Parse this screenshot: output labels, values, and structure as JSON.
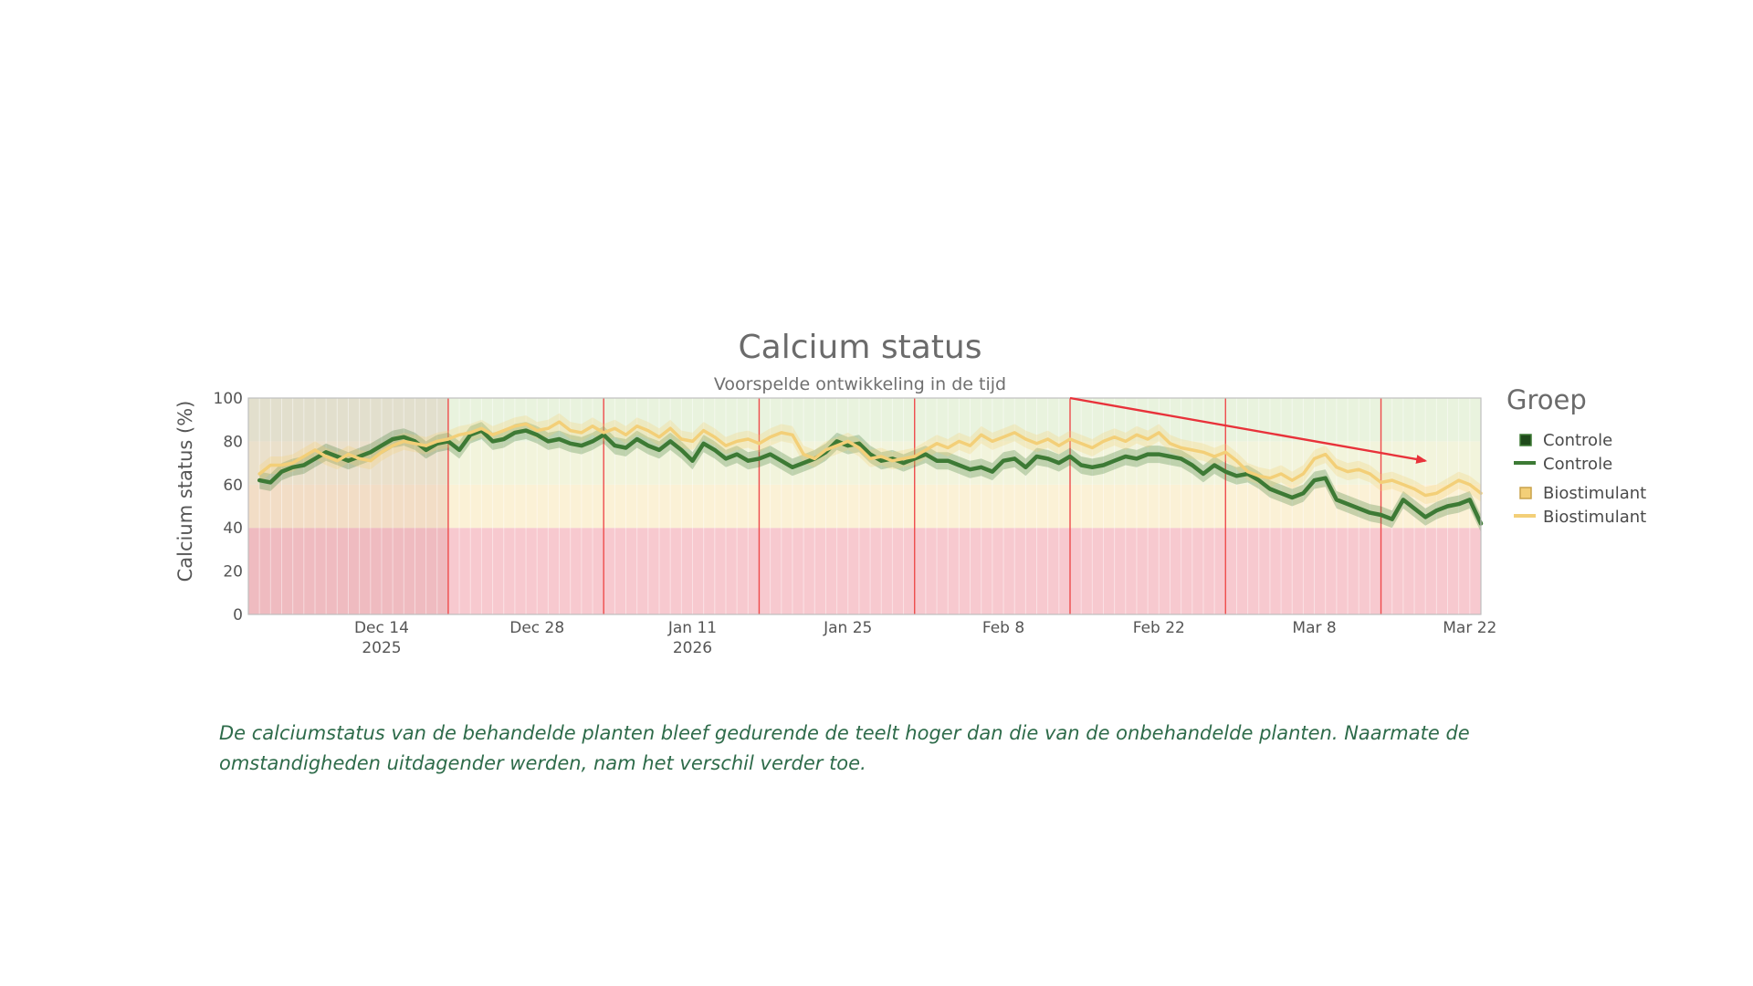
{
  "chart_data": {
    "type": "line",
    "title": "Calcium status",
    "subtitle": "Voorspelde ontwikkeling in de tijd",
    "ylabel": "Calcium status (%)",
    "xlabel": "",
    "ylim": [
      0,
      100
    ],
    "yticks": [
      0,
      20,
      40,
      60,
      80,
      100
    ],
    "xlim": [
      "2025-12-02",
      "2026-03-23"
    ],
    "xticks": [
      {
        "date": "2025-12-14",
        "label": "Dec 14",
        "sublabel": "2025"
      },
      {
        "date": "2025-12-28",
        "label": "Dec 28",
        "sublabel": ""
      },
      {
        "date": "2026-01-11",
        "label": "Jan 11",
        "sublabel": "2026"
      },
      {
        "date": "2026-01-25",
        "label": "Jan 25",
        "sublabel": ""
      },
      {
        "date": "2026-02-08",
        "label": "Feb 8",
        "sublabel": ""
      },
      {
        "date": "2026-02-22",
        "label": "Feb 22",
        "sublabel": ""
      },
      {
        "date": "2026-03-08",
        "label": "Mar 8",
        "sublabel": ""
      },
      {
        "date": "2026-03-22",
        "label": "Mar 22",
        "sublabel": ""
      }
    ],
    "bands": [
      {
        "from": 0,
        "to": 40,
        "color": "#f7c9cf"
      },
      {
        "from": 40,
        "to": 60,
        "color": "#fbf1d6"
      },
      {
        "from": 60,
        "to": 80,
        "color": "#f2f4dc"
      },
      {
        "from": 80,
        "to": 100,
        "color": "#e9f3de"
      }
    ],
    "vertical_markers": [
      "2025-12-20",
      "2026-01-03",
      "2026-01-17",
      "2026-01-31",
      "2026-02-14",
      "2026-02-28",
      "2026-03-14"
    ],
    "legend": {
      "title": "Groep",
      "position": "right"
    },
    "series": [
      {
        "name": "Controle",
        "color": "#3d7a35",
        "points": [
          [
            "2025-12-03",
            62
          ],
          [
            "2025-12-04",
            61
          ],
          [
            "2025-12-05",
            66
          ],
          [
            "2025-12-06",
            68
          ],
          [
            "2025-12-07",
            69
          ],
          [
            "2025-12-08",
            72
          ],
          [
            "2025-12-09",
            75
          ],
          [
            "2025-12-10",
            73
          ],
          [
            "2025-12-11",
            71
          ],
          [
            "2025-12-12",
            73
          ],
          [
            "2025-12-13",
            75
          ],
          [
            "2025-12-14",
            78
          ],
          [
            "2025-12-15",
            81
          ],
          [
            "2025-12-16",
            82
          ],
          [
            "2025-12-17",
            80
          ],
          [
            "2025-12-18",
            76
          ],
          [
            "2025-12-19",
            79
          ],
          [
            "2025-12-20",
            80
          ],
          [
            "2025-12-21",
            76
          ],
          [
            "2025-12-22",
            83
          ],
          [
            "2025-12-23",
            85
          ],
          [
            "2025-12-24",
            80
          ],
          [
            "2025-12-25",
            81
          ],
          [
            "2025-12-26",
            84
          ],
          [
            "2025-12-27",
            85
          ],
          [
            "2025-12-28",
            83
          ],
          [
            "2025-12-29",
            80
          ],
          [
            "2025-12-30",
            81
          ],
          [
            "2025-12-31",
            79
          ],
          [
            "2026-01-01",
            78
          ],
          [
            "2026-01-02",
            80
          ],
          [
            "2026-01-03",
            83
          ],
          [
            "2026-01-04",
            78
          ],
          [
            "2026-01-05",
            77
          ],
          [
            "2026-01-06",
            81
          ],
          [
            "2026-01-07",
            78
          ],
          [
            "2026-01-08",
            76
          ],
          [
            "2026-01-09",
            80
          ],
          [
            "2026-01-10",
            76
          ],
          [
            "2026-01-11",
            71
          ],
          [
            "2026-01-12",
            79
          ],
          [
            "2026-01-13",
            76
          ],
          [
            "2026-01-14",
            72
          ],
          [
            "2026-01-15",
            74
          ],
          [
            "2026-01-16",
            71
          ],
          [
            "2026-01-17",
            72
          ],
          [
            "2026-01-18",
            74
          ],
          [
            "2026-01-19",
            71
          ],
          [
            "2026-01-20",
            68
          ],
          [
            "2026-01-21",
            70
          ],
          [
            "2026-01-22",
            72
          ],
          [
            "2026-01-23",
            75
          ],
          [
            "2026-01-24",
            80
          ],
          [
            "2026-01-25",
            78
          ],
          [
            "2026-01-26",
            79
          ],
          [
            "2026-01-27",
            74
          ],
          [
            "2026-01-28",
            71
          ],
          [
            "2026-01-29",
            72
          ],
          [
            "2026-01-30",
            70
          ],
          [
            "2026-01-31",
            72
          ],
          [
            "2026-02-01",
            74
          ],
          [
            "2026-02-02",
            71
          ],
          [
            "2026-02-03",
            71
          ],
          [
            "2026-02-04",
            69
          ],
          [
            "2026-02-05",
            67
          ],
          [
            "2026-02-06",
            68
          ],
          [
            "2026-02-07",
            66
          ],
          [
            "2026-02-08",
            71
          ],
          [
            "2026-02-09",
            72
          ],
          [
            "2026-02-10",
            68
          ],
          [
            "2026-02-11",
            73
          ],
          [
            "2026-02-12",
            72
          ],
          [
            "2026-02-13",
            70
          ],
          [
            "2026-02-14",
            73
          ],
          [
            "2026-02-15",
            69
          ],
          [
            "2026-02-16",
            68
          ],
          [
            "2026-02-17",
            69
          ],
          [
            "2026-02-18",
            71
          ],
          [
            "2026-02-19",
            73
          ],
          [
            "2026-02-20",
            72
          ],
          [
            "2026-02-21",
            74
          ],
          [
            "2026-02-22",
            74
          ],
          [
            "2026-02-23",
            73
          ],
          [
            "2026-02-24",
            72
          ],
          [
            "2026-02-25",
            69
          ],
          [
            "2026-02-26",
            65
          ],
          [
            "2026-02-27",
            69
          ],
          [
            "2026-02-28",
            66
          ],
          [
            "2026-03-01",
            64
          ],
          [
            "2026-03-02",
            65
          ],
          [
            "2026-03-03",
            62
          ],
          [
            "2026-03-04",
            58
          ],
          [
            "2026-03-05",
            56
          ],
          [
            "2026-03-06",
            54
          ],
          [
            "2026-03-07",
            56
          ],
          [
            "2026-03-08",
            62
          ],
          [
            "2026-03-09",
            63
          ],
          [
            "2026-03-10",
            53
          ],
          [
            "2026-03-11",
            51
          ],
          [
            "2026-03-12",
            49
          ],
          [
            "2026-03-13",
            47
          ],
          [
            "2026-03-14",
            46
          ],
          [
            "2026-03-15",
            44
          ],
          [
            "2026-03-16",
            53
          ],
          [
            "2026-03-17",
            49
          ],
          [
            "2026-03-18",
            45
          ],
          [
            "2026-03-19",
            48
          ],
          [
            "2026-03-20",
            50
          ],
          [
            "2026-03-21",
            51
          ],
          [
            "2026-03-22",
            53
          ],
          [
            "2026-03-23",
            42
          ]
        ]
      },
      {
        "name": "Biostimulant",
        "color": "#f3cf78",
        "points": [
          [
            "2025-12-03",
            65
          ],
          [
            "2025-12-04",
            69
          ],
          [
            "2025-12-05",
            69
          ],
          [
            "2025-12-06",
            70
          ],
          [
            "2025-12-07",
            73
          ],
          [
            "2025-12-08",
            76
          ],
          [
            "2025-12-09",
            73
          ],
          [
            "2025-12-10",
            71
          ],
          [
            "2025-12-11",
            74
          ],
          [
            "2025-12-12",
            72
          ],
          [
            "2025-12-13",
            71
          ],
          [
            "2025-12-14",
            75
          ],
          [
            "2025-12-15",
            78
          ],
          [
            "2025-12-16",
            80
          ],
          [
            "2025-12-17",
            79
          ],
          [
            "2025-12-18",
            78
          ],
          [
            "2025-12-19",
            80
          ],
          [
            "2025-12-20",
            81
          ],
          [
            "2025-12-21",
            83
          ],
          [
            "2025-12-22",
            84
          ],
          [
            "2025-12-23",
            86
          ],
          [
            "2025-12-24",
            83
          ],
          [
            "2025-12-25",
            85
          ],
          [
            "2025-12-26",
            87
          ],
          [
            "2025-12-27",
            88
          ],
          [
            "2025-12-28",
            85
          ],
          [
            "2025-12-29",
            86
          ],
          [
            "2025-12-30",
            89
          ],
          [
            "2025-12-31",
            85
          ],
          [
            "2026-01-01",
            84
          ],
          [
            "2026-01-02",
            87
          ],
          [
            "2026-01-03",
            84
          ],
          [
            "2026-01-04",
            86
          ],
          [
            "2026-01-05",
            83
          ],
          [
            "2026-01-06",
            87
          ],
          [
            "2026-01-07",
            85
          ],
          [
            "2026-01-08",
            82
          ],
          [
            "2026-01-09",
            86
          ],
          [
            "2026-01-10",
            81
          ],
          [
            "2026-01-11",
            80
          ],
          [
            "2026-01-12",
            85
          ],
          [
            "2026-01-13",
            82
          ],
          [
            "2026-01-14",
            78
          ],
          [
            "2026-01-15",
            80
          ],
          [
            "2026-01-16",
            81
          ],
          [
            "2026-01-17",
            79
          ],
          [
            "2026-01-18",
            82
          ],
          [
            "2026-01-19",
            84
          ],
          [
            "2026-01-20",
            83
          ],
          [
            "2026-01-21",
            74
          ],
          [
            "2026-01-22",
            72
          ],
          [
            "2026-01-23",
            76
          ],
          [
            "2026-01-24",
            78
          ],
          [
            "2026-01-25",
            80
          ],
          [
            "2026-01-26",
            77
          ],
          [
            "2026-01-27",
            72
          ],
          [
            "2026-01-28",
            73
          ],
          [
            "2026-01-29",
            71
          ],
          [
            "2026-01-30",
            72
          ],
          [
            "2026-01-31",
            73
          ],
          [
            "2026-02-01",
            76
          ],
          [
            "2026-02-02",
            79
          ],
          [
            "2026-02-03",
            77
          ],
          [
            "2026-02-04",
            80
          ],
          [
            "2026-02-05",
            78
          ],
          [
            "2026-02-06",
            83
          ],
          [
            "2026-02-07",
            80
          ],
          [
            "2026-02-08",
            82
          ],
          [
            "2026-02-09",
            84
          ],
          [
            "2026-02-10",
            81
          ],
          [
            "2026-02-11",
            79
          ],
          [
            "2026-02-12",
            81
          ],
          [
            "2026-02-13",
            78
          ],
          [
            "2026-02-14",
            81
          ],
          [
            "2026-02-15",
            79
          ],
          [
            "2026-02-16",
            77
          ],
          [
            "2026-02-17",
            80
          ],
          [
            "2026-02-18",
            82
          ],
          [
            "2026-02-19",
            80
          ],
          [
            "2026-02-20",
            83
          ],
          [
            "2026-02-21",
            81
          ],
          [
            "2026-02-22",
            84
          ],
          [
            "2026-02-23",
            79
          ],
          [
            "2026-02-24",
            77
          ],
          [
            "2026-02-25",
            76
          ],
          [
            "2026-02-26",
            75
          ],
          [
            "2026-02-27",
            73
          ],
          [
            "2026-02-28",
            75
          ],
          [
            "2026-03-01",
            71
          ],
          [
            "2026-03-02",
            66
          ],
          [
            "2026-03-03",
            64
          ],
          [
            "2026-03-04",
            63
          ],
          [
            "2026-03-05",
            65
          ],
          [
            "2026-03-06",
            62
          ],
          [
            "2026-03-07",
            65
          ],
          [
            "2026-03-08",
            72
          ],
          [
            "2026-03-09",
            74
          ],
          [
            "2026-03-10",
            68
          ],
          [
            "2026-03-11",
            66
          ],
          [
            "2026-03-12",
            67
          ],
          [
            "2026-03-13",
            65
          ],
          [
            "2026-03-14",
            61
          ],
          [
            "2026-03-15",
            62
          ],
          [
            "2026-03-16",
            60
          ],
          [
            "2026-03-17",
            58
          ],
          [
            "2026-03-18",
            55
          ],
          [
            "2026-03-19",
            56
          ],
          [
            "2026-03-20",
            59
          ],
          [
            "2026-03-21",
            62
          ],
          [
            "2026-03-22",
            60
          ],
          [
            "2026-03-23",
            56
          ]
        ]
      }
    ],
    "annotation_arrow": {
      "color": "#e8323a",
      "from": [
        "2026-02-14",
        100
      ],
      "to": [
        "2026-03-18",
        71
      ]
    }
  },
  "caption": "De calciumstatus van de behandelde planten bleef gedurende de teelt hoger dan die van de onbehandelde planten. Naarmate de omstandigheden uitdagender werden, nam het verschil verder toe."
}
